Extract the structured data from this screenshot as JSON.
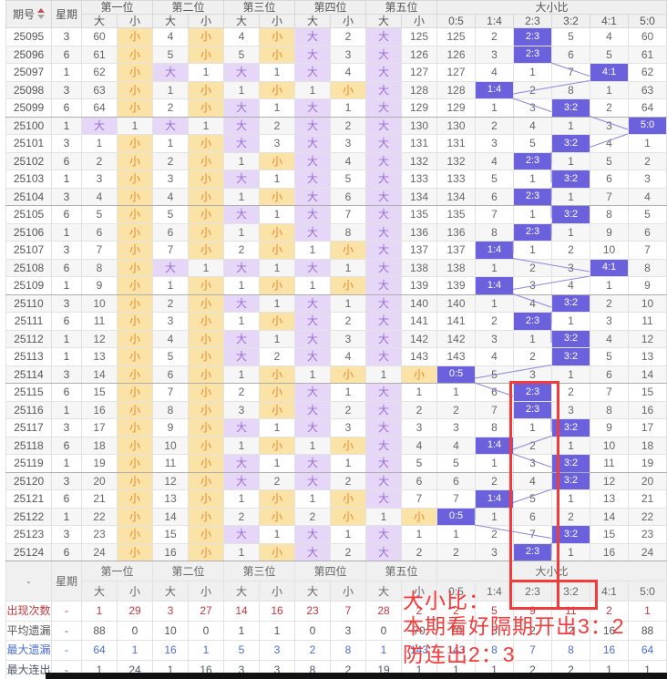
{
  "header": {
    "period": "期号",
    "week": "星期",
    "positions": [
      "第一位",
      "第二位",
      "第三位",
      "第四位",
      "第五位"
    ],
    "big": "大",
    "small": "小",
    "ratio_group": "大小比",
    "ratios": [
      "0:5",
      "1:4",
      "2:3",
      "3:2",
      "4:1",
      "5:0"
    ]
  },
  "rows": [
    {
      "period": "25095",
      "week": "3",
      "cells": [
        "60",
        "小",
        "4",
        "小",
        "4",
        "小",
        "大",
        "2",
        "大",
        "125"
      ],
      "ratios": [
        "125",
        "2",
        "2:3",
        "5",
        "4",
        "60"
      ]
    },
    {
      "period": "25096",
      "week": "6",
      "cells": [
        "61",
        "小",
        "5",
        "小",
        "5",
        "小",
        "大",
        "3",
        "大",
        "126"
      ],
      "ratios": [
        "126",
        "3",
        "2:3",
        "6",
        "5",
        "61"
      ]
    },
    {
      "period": "25097",
      "week": "1",
      "cells": [
        "62",
        "小",
        "大",
        "1",
        "大",
        "1",
        "大",
        "4",
        "大",
        "127"
      ],
      "ratios": [
        "127",
        "4",
        "1",
        "7",
        "4:1",
        "62"
      ]
    },
    {
      "period": "25098",
      "week": "3",
      "cells": [
        "63",
        "小",
        "1",
        "小",
        "1",
        "小",
        "1",
        "小",
        "大",
        "128"
      ],
      "ratios": [
        "128",
        "1:4",
        "2",
        "8",
        "1",
        "63"
      ]
    },
    {
      "period": "25099",
      "week": "6",
      "cells": [
        "64",
        "小",
        "2",
        "小",
        "大",
        "1",
        "大",
        "1",
        "大",
        "129"
      ],
      "ratios": [
        "129",
        "1",
        "3",
        "3:2",
        "2",
        "64"
      ]
    },
    {
      "period": "25100",
      "week": "1",
      "cells": [
        "大",
        "1",
        "大",
        "1",
        "大",
        "2",
        "大",
        "2",
        "大",
        "130"
      ],
      "ratios": [
        "130",
        "2",
        "4",
        "1",
        "3",
        "5:0"
      ]
    },
    {
      "period": "25101",
      "week": "3",
      "cells": [
        "1",
        "小",
        "1",
        "小",
        "大",
        "3",
        "大",
        "3",
        "大",
        "131"
      ],
      "ratios": [
        "131",
        "3",
        "5",
        "3:2",
        "4",
        "1"
      ]
    },
    {
      "period": "25102",
      "week": "6",
      "cells": [
        "2",
        "小",
        "2",
        "小",
        "1",
        "小",
        "大",
        "4",
        "大",
        "132"
      ],
      "ratios": [
        "132",
        "4",
        "2:3",
        "1",
        "5",
        "2"
      ]
    },
    {
      "period": "25103",
      "week": "1",
      "cells": [
        "3",
        "小",
        "3",
        "小",
        "大",
        "1",
        "大",
        "5",
        "大",
        "133"
      ],
      "ratios": [
        "133",
        "5",
        "1",
        "3:2",
        "6",
        "3"
      ]
    },
    {
      "period": "25104",
      "week": "3",
      "cells": [
        "4",
        "小",
        "4",
        "小",
        "1",
        "小",
        "大",
        "6",
        "大",
        "134"
      ],
      "ratios": [
        "134",
        "6",
        "2:3",
        "1",
        "7",
        "4"
      ]
    },
    {
      "period": "25105",
      "week": "6",
      "cells": [
        "5",
        "小",
        "5",
        "小",
        "大",
        "1",
        "大",
        "7",
        "大",
        "135"
      ],
      "ratios": [
        "135",
        "7",
        "1",
        "3:2",
        "8",
        "5"
      ]
    },
    {
      "period": "25106",
      "week": "1",
      "cells": [
        "6",
        "小",
        "6",
        "小",
        "1",
        "小",
        "大",
        "8",
        "大",
        "136"
      ],
      "ratios": [
        "136",
        "8",
        "2:3",
        "1",
        "9",
        "6"
      ]
    },
    {
      "period": "25107",
      "week": "3",
      "cells": [
        "7",
        "小",
        "7",
        "小",
        "2",
        "小",
        "1",
        "小",
        "大",
        "137"
      ],
      "ratios": [
        "137",
        "1:4",
        "1",
        "2",
        "10",
        "7"
      ]
    },
    {
      "period": "25108",
      "week": "6",
      "cells": [
        "8",
        "小",
        "大",
        "1",
        "大",
        "1",
        "大",
        "1",
        "大",
        "138"
      ],
      "ratios": [
        "138",
        "1",
        "2",
        "3",
        "4:1",
        "8"
      ]
    },
    {
      "period": "25109",
      "week": "1",
      "cells": [
        "9",
        "小",
        "1",
        "小",
        "1",
        "小",
        "1",
        "小",
        "大",
        "139"
      ],
      "ratios": [
        "139",
        "1:4",
        "3",
        "4",
        "1",
        "9"
      ]
    },
    {
      "period": "25110",
      "week": "3",
      "cells": [
        "10",
        "小",
        "2",
        "小",
        "大",
        "1",
        "大",
        "1",
        "大",
        "140"
      ],
      "ratios": [
        "140",
        "1",
        "4",
        "3:2",
        "2",
        "10"
      ]
    },
    {
      "period": "25111",
      "week": "6",
      "cells": [
        "11",
        "小",
        "3",
        "小",
        "1",
        "小",
        "大",
        "2",
        "大",
        "141"
      ],
      "ratios": [
        "141",
        "2",
        "2:3",
        "1",
        "3",
        "11"
      ]
    },
    {
      "period": "25112",
      "week": "1",
      "cells": [
        "12",
        "小",
        "4",
        "小",
        "大",
        "1",
        "大",
        "3",
        "大",
        "142"
      ],
      "ratios": [
        "142",
        "3",
        "1",
        "3:2",
        "4",
        "12"
      ]
    },
    {
      "period": "25113",
      "week": "1",
      "cells": [
        "13",
        "小",
        "5",
        "小",
        "大",
        "2",
        "大",
        "4",
        "大",
        "143"
      ],
      "ratios": [
        "143",
        "4",
        "2",
        "3:2",
        "5",
        "13"
      ]
    },
    {
      "period": "25114",
      "week": "3",
      "cells": [
        "14",
        "小",
        "6",
        "小",
        "1",
        "小",
        "1",
        "小",
        "1",
        "小"
      ],
      "ratios": [
        "0:5",
        "5",
        "3",
        "1",
        "6",
        "14"
      ]
    },
    {
      "period": "25115",
      "week": "6",
      "cells": [
        "15",
        "小",
        "7",
        "小",
        "2",
        "小",
        "大",
        "1",
        "大",
        "1"
      ],
      "ratios": [
        "1",
        "6",
        "2:3",
        "2",
        "7",
        "15"
      ]
    },
    {
      "period": "25116",
      "week": "1",
      "cells": [
        "16",
        "小",
        "8",
        "小",
        "3",
        "小",
        "大",
        "2",
        "大",
        "2"
      ],
      "ratios": [
        "2",
        "7",
        "2:3",
        "3",
        "8",
        "16"
      ]
    },
    {
      "period": "25117",
      "week": "3",
      "cells": [
        "17",
        "小",
        "9",
        "小",
        "大",
        "1",
        "大",
        "3",
        "大",
        "3"
      ],
      "ratios": [
        "3",
        "8",
        "1",
        "3:2",
        "9",
        "17"
      ]
    },
    {
      "period": "25118",
      "week": "6",
      "cells": [
        "18",
        "小",
        "10",
        "小",
        "1",
        "小",
        "1",
        "小",
        "大",
        "4"
      ],
      "ratios": [
        "4",
        "1:4",
        "2",
        "1",
        "10",
        "18"
      ]
    },
    {
      "period": "25119",
      "week": "1",
      "cells": [
        "19",
        "小",
        "11",
        "小",
        "大",
        "1",
        "大",
        "1",
        "大",
        "5"
      ],
      "ratios": [
        "5",
        "1",
        "3",
        "3:2",
        "11",
        "19"
      ]
    },
    {
      "period": "25120",
      "week": "3",
      "cells": [
        "20",
        "小",
        "12",
        "小",
        "大",
        "2",
        "大",
        "2",
        "大",
        "6"
      ],
      "ratios": [
        "6",
        "2",
        "4",
        "3:2",
        "12",
        "20"
      ]
    },
    {
      "period": "25121",
      "week": "6",
      "cells": [
        "21",
        "小",
        "13",
        "小",
        "1",
        "小",
        "1",
        "小",
        "大",
        "7"
      ],
      "ratios": [
        "7",
        "1:4",
        "5",
        "1",
        "13",
        "21"
      ]
    },
    {
      "period": "25122",
      "week": "1",
      "cells": [
        "22",
        "小",
        "14",
        "小",
        "2",
        "小",
        "2",
        "小",
        "1",
        "小"
      ],
      "ratios": [
        "0:5",
        "1",
        "6",
        "2",
        "14",
        "22"
      ]
    },
    {
      "period": "25123",
      "week": "3",
      "cells": [
        "23",
        "小",
        "15",
        "小",
        "大",
        "1",
        "大",
        "1",
        "大",
        "1"
      ],
      "ratios": [
        "1",
        "2",
        "7",
        "3:2",
        "15",
        "23"
      ]
    },
    {
      "period": "25124",
      "week": "6",
      "cells": [
        "24",
        "小",
        "16",
        "小",
        "1",
        "小",
        "大",
        "2",
        "大",
        "2"
      ],
      "ratios": [
        "2",
        "3",
        "2:3",
        "1",
        "16",
        "24"
      ]
    }
  ],
  "summary": {
    "corner": "-",
    "week_dash": "-",
    "rows": [
      {
        "label": "出现次数",
        "tone": "s-red",
        "values": [
          "1",
          "29",
          "3",
          "27",
          "14",
          "16",
          "23",
          "7",
          "28",
          "2",
          "2",
          "5",
          "9",
          "11",
          "2",
          "1"
        ]
      },
      {
        "label": "平均遗漏",
        "tone": "s-gray",
        "values": [
          "88",
          "0",
          "10",
          "0",
          "1",
          "1",
          "0",
          "3",
          "0",
          "70",
          "70",
          "5",
          "2",
          "2",
          "16",
          "88"
        ]
      },
      {
        "label": "最大遗漏",
        "tone": "s-blue",
        "values": [
          "64",
          "1",
          "16",
          "1",
          "5",
          "3",
          "2",
          "8",
          "1",
          "143",
          "143",
          "8",
          "7",
          "8",
          "16",
          "64"
        ]
      },
      {
        "label": "最大连出",
        "tone": "s-dark",
        "values": [
          "1",
          "24",
          "1",
          "16",
          "3",
          "3",
          "8",
          "2",
          "19",
          "1",
          "1",
          "1",
          "2",
          "2",
          "1",
          "1"
        ]
      }
    ]
  },
  "annotation": {
    "title": "大小比：",
    "line1": "本期看好隔期开出3：2",
    "line2": "防连出2：3"
  },
  "colors": {
    "big_bg": "#e6d6f8",
    "big_text": "#9a70d0",
    "small_bg": "#fbe3a8",
    "small_text": "#e98a2d",
    "ratio_hit_bg": "#6b61dc",
    "ratio_hit_text": "#ffffff",
    "trend_line": "#8d86d8",
    "annotation_red": "#f23c3c",
    "count_red": "#c13b42",
    "max_miss_blue": "#4c6fc8"
  }
}
